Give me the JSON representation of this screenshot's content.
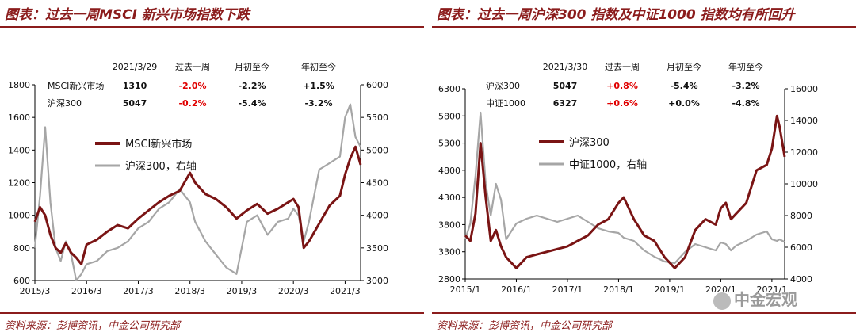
{
  "colors": {
    "accent": "#8b1c1c",
    "index_line": "#7a1414",
    "csi_line": "#a6a6a6",
    "positive": "#e00000",
    "text": "#111111"
  },
  "watermark": "中金宏观",
  "watermark_icon": "wechat-icon",
  "chart_data": [
    {
      "type": "line",
      "title": "图表：过去一周MSCI 新兴市场指数下跌",
      "source": "资料来源：彭博资讯，中金公司研究部",
      "x_range": [
        2015.0,
        2021.3
      ],
      "x_ticks": [
        {
          "value": 2015.0,
          "label": "2015/3"
        },
        {
          "value": 2016.0,
          "label": "2016/3"
        },
        {
          "value": 2017.0,
          "label": "2017/3"
        },
        {
          "value": 2018.0,
          "label": "2018/3"
        },
        {
          "value": 2019.0,
          "label": "2019/3"
        },
        {
          "value": 2020.0,
          "label": "2020/3"
        },
        {
          "value": 2021.0,
          "label": "2021/3"
        }
      ],
      "y_left": {
        "min": 600,
        "max": 1800,
        "ticks": [
          600,
          800,
          1000,
          1200,
          1400,
          1600,
          1800
        ]
      },
      "y_right": {
        "min": 3000,
        "max": 6000,
        "ticks": [
          3000,
          3500,
          4000,
          4500,
          5000,
          5500,
          6000
        ]
      },
      "legend": [
        {
          "name": "MSCI新兴市场",
          "color": "#7a1414"
        },
        {
          "name": "沪深300，右轴",
          "color": "#a6a6a6"
        }
      ],
      "table": {
        "columns": [
          "2021/3/29",
          "过去一周",
          "月初至今",
          "年初至今"
        ],
        "rows": [
          {
            "name": "MSCI新兴市场",
            "value": "1310",
            "week": "-2.0%",
            "month": "-2.2%",
            "ytd": "+1.5%",
            "week_red": true
          },
          {
            "name": "沪深300",
            "value": "5047",
            "week": "-0.2%",
            "month": "-5.4%",
            "ytd": "-3.2%",
            "week_red": true
          }
        ]
      },
      "series": [
        {
          "name": "MSCI新兴市场",
          "axis": "left",
          "color": "#7a1414",
          "x": [
            2015.0,
            2015.1,
            2015.2,
            2015.3,
            2015.4,
            2015.5,
            2015.6,
            2015.7,
            2015.8,
            2015.9,
            2016.0,
            2016.2,
            2016.4,
            2016.6,
            2016.8,
            2017.0,
            2017.2,
            2017.4,
            2017.6,
            2017.8,
            2018.0,
            2018.1,
            2018.3,
            2018.5,
            2018.7,
            2018.9,
            2019.1,
            2019.3,
            2019.5,
            2019.7,
            2019.9,
            2020.0,
            2020.1,
            2020.2,
            2020.3,
            2020.5,
            2020.7,
            2020.9,
            2021.0,
            2021.1,
            2021.2,
            2021.3
          ],
          "values": [
            960,
            1050,
            1000,
            880,
            800,
            770,
            830,
            770,
            740,
            700,
            820,
            850,
            900,
            940,
            920,
            980,
            1030,
            1080,
            1120,
            1150,
            1260,
            1200,
            1130,
            1100,
            1050,
            980,
            1030,
            1070,
            1010,
            1040,
            1080,
            1100,
            1050,
            800,
            840,
            950,
            1060,
            1120,
            1250,
            1350,
            1420,
            1310
          ]
        },
        {
          "name": "沪深300，右轴",
          "axis": "right",
          "color": "#a6a6a6",
          "x": [
            2015.0,
            2015.1,
            2015.2,
            2015.3,
            2015.4,
            2015.5,
            2015.6,
            2015.7,
            2015.8,
            2015.9,
            2016.0,
            2016.2,
            2016.4,
            2016.6,
            2016.8,
            2017.0,
            2017.2,
            2017.4,
            2017.6,
            2017.8,
            2018.0,
            2018.1,
            2018.3,
            2018.5,
            2018.7,
            2018.9,
            2019.1,
            2019.3,
            2019.5,
            2019.7,
            2019.9,
            2020.0,
            2020.1,
            2020.2,
            2020.3,
            2020.5,
            2020.7,
            2020.9,
            2021.0,
            2021.1,
            2021.2,
            2021.3
          ],
          "values": [
            3500,
            4300,
            5350,
            4200,
            3500,
            3300,
            3600,
            3400,
            3000,
            3100,
            3250,
            3300,
            3450,
            3500,
            3600,
            3800,
            3900,
            4100,
            4200,
            4400,
            4200,
            3900,
            3600,
            3400,
            3200,
            3100,
            3900,
            4000,
            3700,
            3900,
            3950,
            4100,
            4000,
            3600,
            3900,
            4700,
            4800,
            4900,
            5500,
            5700,
            5200,
            5047
          ]
        }
      ]
    },
    {
      "type": "line",
      "title": "图表：过去一周沪深300 指数及中证1000 指数均有所回升",
      "source": "资料来源：彭博资讯，中金公司研究部",
      "x_range": [
        2015.0,
        2021.25
      ],
      "x_ticks": [
        {
          "value": 2015.0,
          "label": "2015/1"
        },
        {
          "value": 2016.0,
          "label": "2016/1"
        },
        {
          "value": 2017.0,
          "label": "2017/1"
        },
        {
          "value": 2018.0,
          "label": "2018/1"
        },
        {
          "value": 2019.0,
          "label": "2019/1"
        },
        {
          "value": 2020.0,
          "label": "2020/1"
        },
        {
          "value": 2021.0,
          "label": "2021/1"
        }
      ],
      "y_left": {
        "min": 2800,
        "max": 6300,
        "ticks": [
          2800,
          3300,
          3800,
          4300,
          4800,
          5300,
          5800,
          6300
        ]
      },
      "y_right": {
        "min": 4000,
        "max": 16000,
        "ticks": [
          4000,
          6000,
          8000,
          10000,
          12000,
          14000,
          16000
        ]
      },
      "legend": [
        {
          "name": "沪深300",
          "color": "#7a1414"
        },
        {
          "name": "中证1000，右轴",
          "color": "#a6a6a6"
        }
      ],
      "table": {
        "columns": [
          "2021/3/30",
          "过去一周",
          "月初至今",
          "年初至今"
        ],
        "rows": [
          {
            "name": "沪深300",
            "value": "5047",
            "week": "+0.8%",
            "month": "-5.4%",
            "ytd": "-3.2%",
            "week_red": true
          },
          {
            "name": "中证1000",
            "value": "6327",
            "week": "+0.6%",
            "month": "+0.0%",
            "ytd": "-4.8%",
            "week_red": true
          }
        ]
      },
      "series": [
        {
          "name": "沪深300",
          "axis": "left",
          "color": "#7a1414",
          "x": [
            2015.0,
            2015.1,
            2015.2,
            2015.3,
            2015.4,
            2015.5,
            2015.6,
            2015.7,
            2015.8,
            2015.9,
            2016.0,
            2016.2,
            2016.4,
            2016.6,
            2016.8,
            2017.0,
            2017.2,
            2017.4,
            2017.6,
            2017.8,
            2018.0,
            2018.1,
            2018.3,
            2018.5,
            2018.7,
            2018.9,
            2019.1,
            2019.3,
            2019.5,
            2019.7,
            2019.9,
            2020.0,
            2020.1,
            2020.2,
            2020.3,
            2020.5,
            2020.7,
            2020.9,
            2021.0,
            2021.1,
            2021.15,
            2021.25
          ],
          "values": [
            3600,
            3500,
            4000,
            5300,
            4300,
            3500,
            3700,
            3400,
            3200,
            3100,
            3000,
            3200,
            3250,
            3300,
            3350,
            3400,
            3500,
            3600,
            3800,
            3900,
            4200,
            4300,
            3900,
            3600,
            3500,
            3200,
            3000,
            3200,
            3700,
            3900,
            3800,
            4100,
            4200,
            3900,
            4000,
            4200,
            4800,
            4900,
            5200,
            5800,
            5600,
            5047
          ]
        },
        {
          "name": "中证1000，右轴",
          "axis": "right",
          "color": "#a6a6a6",
          "x": [
            2015.0,
            2015.1,
            2015.2,
            2015.3,
            2015.4,
            2015.5,
            2015.6,
            2015.7,
            2015.8,
            2015.9,
            2016.0,
            2016.2,
            2016.4,
            2016.6,
            2016.8,
            2017.0,
            2017.2,
            2017.4,
            2017.6,
            2017.8,
            2018.0,
            2018.1,
            2018.3,
            2018.5,
            2018.7,
            2018.9,
            2019.1,
            2019.3,
            2019.5,
            2019.7,
            2019.9,
            2020.0,
            2020.1,
            2020.2,
            2020.3,
            2020.5,
            2020.7,
            2020.9,
            2021.0,
            2021.1,
            2021.15,
            2021.25
          ],
          "values": [
            6500,
            7500,
            10500,
            14500,
            10000,
            8000,
            10000,
            9000,
            6500,
            7000,
            7500,
            7800,
            8000,
            7800,
            7600,
            7800,
            8000,
            7600,
            7200,
            7000,
            6900,
            6600,
            6400,
            5800,
            5400,
            5100,
            5000,
            5700,
            6200,
            6000,
            5800,
            6300,
            6200,
            5800,
            6100,
            6400,
            6800,
            7000,
            6500,
            6400,
            6500,
            6327
          ]
        }
      ]
    }
  ]
}
